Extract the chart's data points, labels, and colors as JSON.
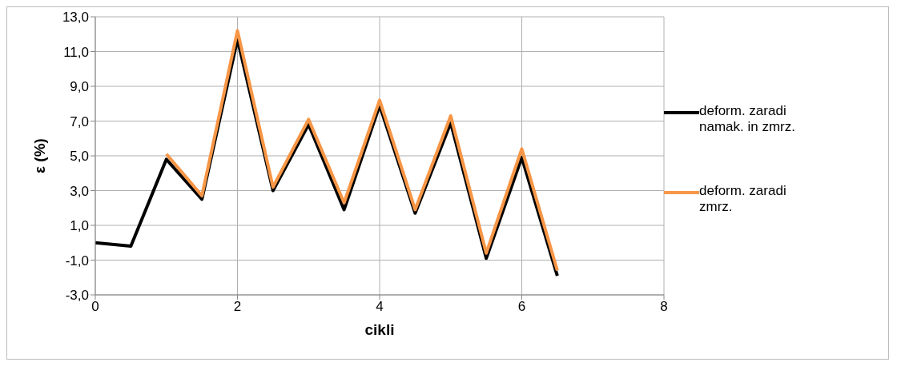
{
  "chart_data": {
    "type": "line",
    "xlabel": "cikli",
    "ylabel": "ε (%)",
    "series": [
      {
        "name": "deform. zaradi namak. in zmrz.",
        "color": "#000000",
        "x": [
          0,
          0.5,
          1,
          1.5,
          2,
          2.5,
          3,
          3.5,
          4,
          4.5,
          5,
          5.5,
          6,
          6.5
        ],
        "values": [
          0.0,
          -0.2,
          4.8,
          2.5,
          11.7,
          3.0,
          6.8,
          1.9,
          7.9,
          1.7,
          6.9,
          -0.9,
          4.9,
          -1.9
        ]
      },
      {
        "name": "deform. zaradi zmrz.",
        "color": "#f79646",
        "x": [
          1,
          1.5,
          2,
          2.5,
          3,
          3.5,
          4,
          4.5,
          5,
          5.5,
          6,
          6.5
        ],
        "values": [
          5.1,
          2.7,
          12.2,
          3.2,
          7.1,
          2.3,
          8.2,
          1.9,
          7.3,
          -0.6,
          5.4,
          -1.6
        ]
      }
    ],
    "xlim": [
      0,
      8
    ],
    "xticks": [
      0,
      2,
      4,
      6,
      8
    ],
    "ylim": [
      -3,
      13
    ],
    "yticks": [
      {
        "value": -3,
        "label": "-3,0"
      },
      {
        "value": -1,
        "label": "-1,0"
      },
      {
        "value": 1,
        "label": "1,0"
      },
      {
        "value": 3,
        "label": "3,0"
      },
      {
        "value": 5,
        "label": "5,0"
      },
      {
        "value": 7,
        "label": "7,0"
      },
      {
        "value": 9,
        "label": "9,0"
      },
      {
        "value": 11,
        "label": "11,0"
      },
      {
        "value": 13,
        "label": "13,0"
      }
    ],
    "grid": true,
    "legend": "right",
    "marker": "none",
    "line_style": "solid"
  }
}
